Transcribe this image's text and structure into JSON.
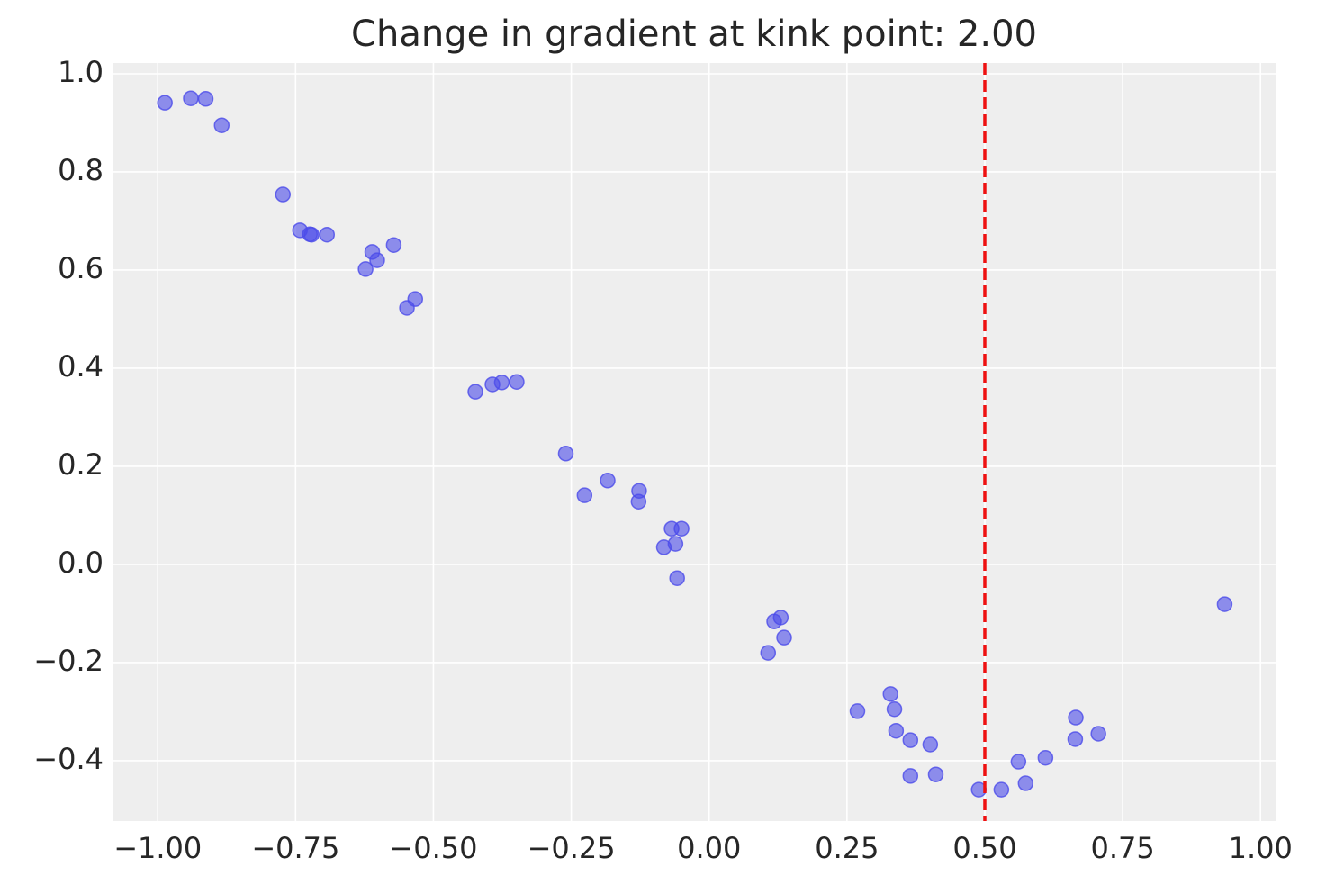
{
  "chart_data": {
    "type": "scatter",
    "title": "Change in gradient at kink point: 2.00",
    "x": [
      -0.987,
      -0.94,
      -0.913,
      -0.884,
      -0.773,
      -0.742,
      -0.724,
      -0.721,
      -0.693,
      -0.623,
      -0.611,
      -0.602,
      -0.572,
      -0.548,
      -0.533,
      -0.424,
      -0.393,
      -0.376,
      -0.349,
      -0.26,
      -0.226,
      -0.184,
      -0.127,
      -0.128,
      -0.068,
      -0.05,
      -0.082,
      -0.061,
      -0.058,
      0.118,
      0.13,
      0.136,
      0.107,
      0.269,
      0.329,
      0.336,
      0.339,
      0.365,
      0.401,
      0.365,
      0.411,
      0.489,
      0.53,
      0.561,
      0.574,
      0.61,
      0.665,
      0.664,
      0.706,
      0.935
    ],
    "values": [
      0.941,
      0.95,
      0.949,
      0.895,
      0.754,
      0.681,
      0.673,
      0.672,
      0.672,
      0.602,
      0.637,
      0.62,
      0.651,
      0.523,
      0.541,
      0.352,
      0.367,
      0.371,
      0.372,
      0.226,
      0.141,
      0.171,
      0.15,
      0.128,
      0.073,
      0.073,
      0.035,
      0.042,
      -0.028,
      -0.116,
      -0.108,
      -0.149,
      -0.18,
      -0.299,
      -0.264,
      -0.295,
      -0.339,
      -0.358,
      -0.367,
      -0.431,
      -0.428,
      -0.459,
      -0.459,
      -0.402,
      -0.446,
      -0.394,
      -0.312,
      -0.356,
      -0.345,
      -0.081
    ],
    "color": "#4b4bea",
    "vline": {
      "x": 0.5,
      "color": "#ee1111",
      "style": "dashed"
    },
    "xlim": [
      -1.082,
      1.029
    ],
    "ylim": [
      -0.523,
      1.022
    ],
    "xticks": [
      {
        "value": -1,
        "label": "−1.00"
      },
      {
        "value": -0.75,
        "label": "−0.75"
      },
      {
        "value": -0.5,
        "label": "−0.50"
      },
      {
        "value": -0.25,
        "label": "−0.25"
      },
      {
        "value": 0,
        "label": "0.00"
      },
      {
        "value": 0.25,
        "label": "0.25"
      },
      {
        "value": 0.5,
        "label": "0.50"
      },
      {
        "value": 0.75,
        "label": "0.75"
      },
      {
        "value": 1,
        "label": "1.00"
      }
    ],
    "yticks": [
      {
        "value": -0.4,
        "label": "−0.4"
      },
      {
        "value": -0.2,
        "label": "−0.2"
      },
      {
        "value": 0,
        "label": "0.0"
      },
      0.2,
      0.4,
      0.6,
      0.8,
      {
        "value": 1,
        "label": "1.0"
      }
    ],
    "grid": true
  }
}
